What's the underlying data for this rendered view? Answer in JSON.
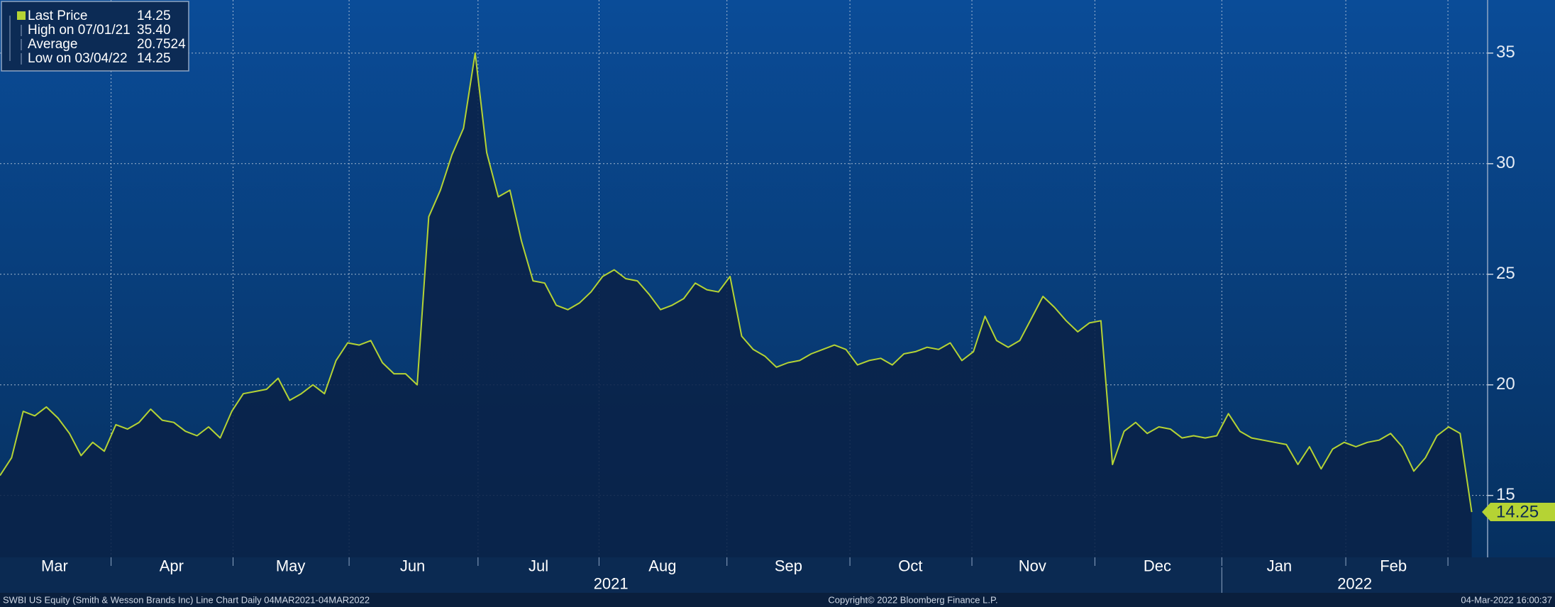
{
  "chart_data": {
    "type": "line",
    "footer_left": "SWBI US Equity (Smith & Wesson Brands Inc) Line Chart  Daily 04MAR2021-04MAR2022",
    "footer_center": "Copyright© 2022 Bloomberg Finance L.P.",
    "footer_right": "04-Mar-2022 16:00:37",
    "months": [
      "Mar",
      "Apr",
      "May",
      "Jun",
      "Jul",
      "Aug",
      "Sep",
      "Oct",
      "Nov",
      "Dec",
      "Jan",
      "Feb"
    ],
    "years": [
      "2021",
      "2022"
    ],
    "series": [
      {
        "name": "Last Price",
        "color": "#b5d334",
        "values": [
          15.9,
          16.7,
          18.8,
          18.6,
          19.0,
          18.5,
          17.8,
          16.8,
          17.4,
          17.0,
          18.2,
          18.0,
          18.3,
          18.9,
          18.4,
          18.3,
          17.9,
          17.7,
          18.1,
          17.6,
          18.8,
          19.6,
          19.7,
          19.8,
          20.3,
          19.3,
          19.6,
          20.0,
          19.6,
          21.1,
          21.9,
          21.8,
          22.0,
          21.0,
          20.5,
          20.5,
          20.0,
          27.6,
          28.8,
          30.4,
          31.6,
          35.0,
          30.5,
          28.5,
          28.8,
          26.5,
          24.7,
          24.6,
          23.6,
          23.4,
          23.7,
          24.2,
          24.9,
          25.2,
          24.8,
          24.7,
          24.1,
          23.4,
          23.6,
          23.9,
          24.6,
          24.3,
          24.2,
          24.9,
          22.2,
          21.6,
          21.3,
          20.8,
          21.0,
          21.1,
          21.4,
          21.6,
          21.8,
          21.6,
          20.9,
          21.1,
          21.2,
          20.9,
          21.4,
          21.5,
          21.7,
          21.6,
          21.9,
          21.1,
          21.5,
          23.1,
          22.0,
          21.7,
          22.0,
          23.0,
          24.0,
          23.5,
          22.9,
          22.4,
          22.8,
          22.9,
          16.4,
          17.9,
          18.3,
          17.8,
          18.1,
          18.0,
          17.6,
          17.7,
          17.6,
          17.7,
          18.7,
          17.9,
          17.6,
          17.5,
          17.4,
          17.3,
          16.4,
          17.2,
          16.2,
          17.1,
          17.4,
          17.2,
          17.4,
          17.5,
          17.8,
          17.2,
          16.1,
          16.7,
          17.7,
          18.1,
          17.8,
          14.25
        ]
      }
    ],
    "last_value_label": "14.25",
    "stats": {
      "labels": [
        "Last Price",
        "High on 07/01/21",
        "Average",
        "Low on 03/04/22"
      ],
      "values": [
        14.25,
        35.4,
        20.7524,
        14.25
      ],
      "value_labels": [
        "14.25",
        "35.40",
        "20.7524",
        "14.25"
      ]
    },
    "ylim": [
      12.2,
      37.4
    ],
    "yticks": [
      15,
      20,
      25,
      30,
      35
    ],
    "grid": true
  }
}
